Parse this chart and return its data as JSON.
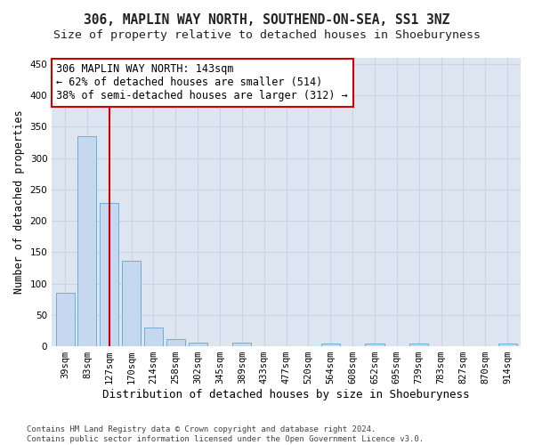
{
  "title": "306, MAPLIN WAY NORTH, SOUTHEND-ON-SEA, SS1 3NZ",
  "subtitle": "Size of property relative to detached houses in Shoeburyness",
  "xlabel": "Distribution of detached houses by size in Shoeburyness",
  "ylabel": "Number of detached properties",
  "categories": [
    "39sqm",
    "83sqm",
    "127sqm",
    "170sqm",
    "214sqm",
    "258sqm",
    "302sqm",
    "345sqm",
    "389sqm",
    "433sqm",
    "477sqm",
    "520sqm",
    "564sqm",
    "608sqm",
    "652sqm",
    "695sqm",
    "739sqm",
    "783sqm",
    "827sqm",
    "870sqm",
    "914sqm"
  ],
  "values": [
    85,
    335,
    228,
    136,
    30,
    11,
    6,
    0,
    6,
    0,
    0,
    0,
    4,
    0,
    4,
    0,
    4,
    0,
    0,
    0,
    4
  ],
  "bar_color": "#c5d8f0",
  "bar_edge_color": "#6baed6",
  "vline_x_index": 2,
  "vline_color": "#cc0000",
  "annotation_text": "306 MAPLIN WAY NORTH: 143sqm\n← 62% of detached houses are smaller (514)\n38% of semi-detached houses are larger (312) →",
  "annotation_box_color": "#ffffff",
  "annotation_box_edge": "#cc0000",
  "ylim": [
    0,
    460
  ],
  "yticks": [
    0,
    50,
    100,
    150,
    200,
    250,
    300,
    350,
    400,
    450
  ],
  "fig_background_color": "#ffffff",
  "plot_background_color": "#dde6f0",
  "grid_color": "#c8d4e0",
  "footer": "Contains HM Land Registry data © Crown copyright and database right 2024.\nContains public sector information licensed under the Open Government Licence v3.0.",
  "title_fontsize": 10.5,
  "subtitle_fontsize": 9.5,
  "xlabel_fontsize": 9,
  "ylabel_fontsize": 8.5,
  "tick_fontsize": 7.5,
  "annot_fontsize": 8.5,
  "footer_fontsize": 6.5
}
